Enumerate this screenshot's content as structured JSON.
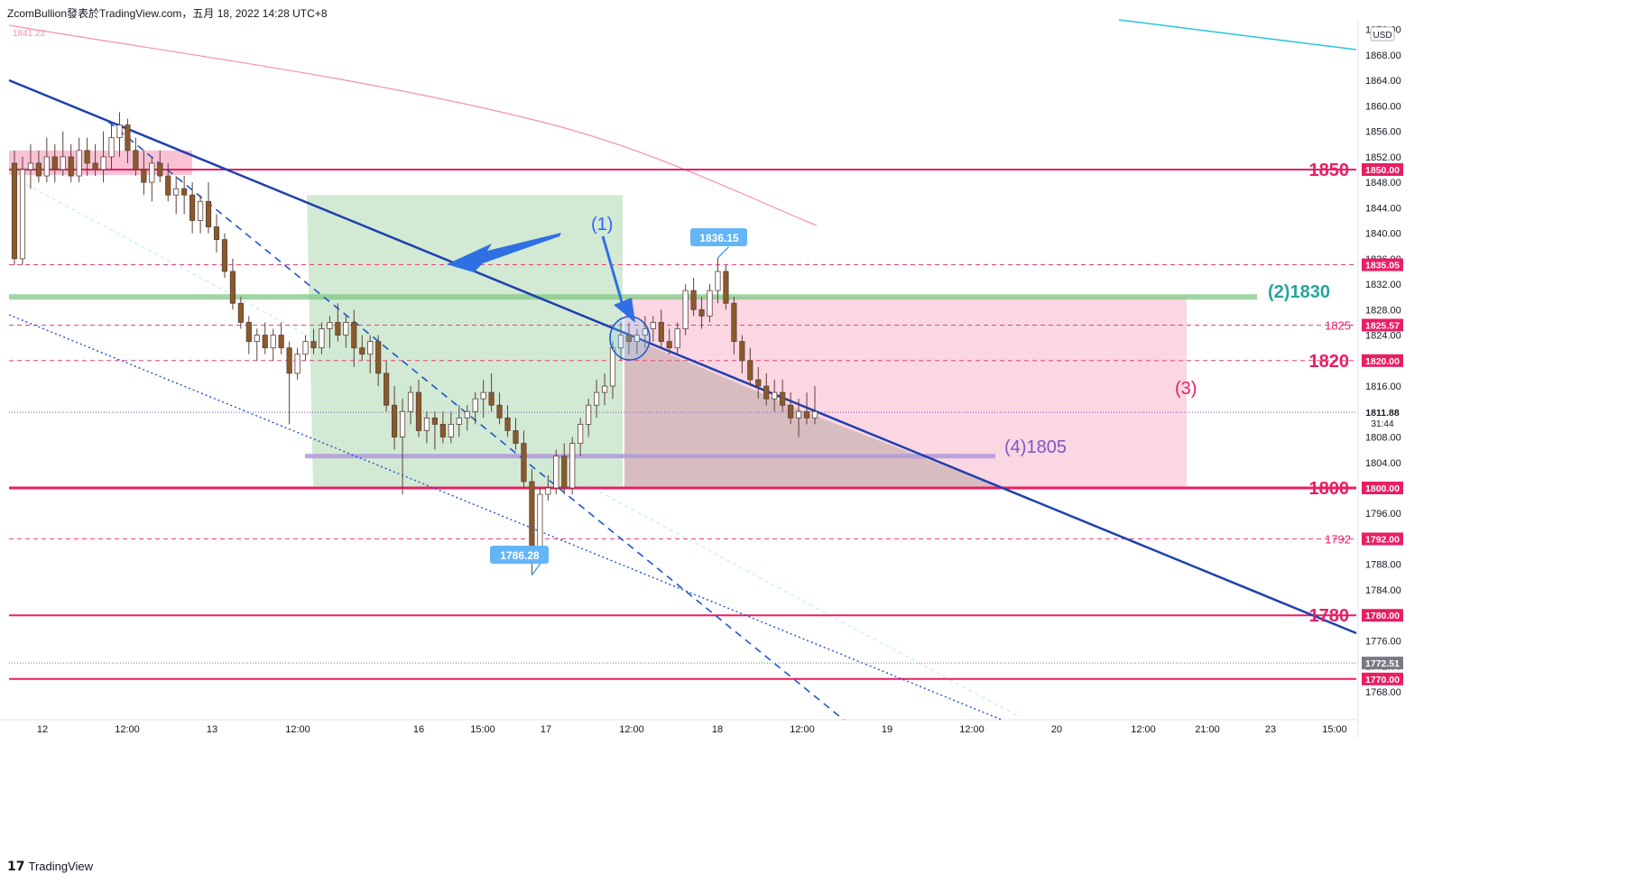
{
  "header": {
    "caption": "ZcomBullion發表於TradingView.com，五月 18, 2022 14:28 UTC+8"
  },
  "footer": {
    "brand": "TradingView"
  },
  "chart_data": {
    "type": "candlestick",
    "currency": "USD",
    "price_axis": {
      "ylim": [
        1765,
        1872
      ],
      "ticks": [
        1768,
        1772,
        1776,
        1780,
        1784,
        1788,
        1792,
        1796,
        1800,
        1804,
        1808,
        1812,
        1816,
        1820,
        1824,
        1828,
        1832,
        1836,
        1840,
        1844,
        1848,
        1852,
        1856,
        1860,
        1864,
        1868
      ],
      "top_partial_label": "1872.00"
    },
    "time_axis": {
      "ticks": [
        "12",
        "12:00",
        "13",
        "12:00",
        "16",
        "15:00",
        "17",
        "12:00",
        "18",
        "12:00",
        "19",
        "12:00",
        "20",
        "12:00",
        "21:00",
        "23",
        "15:00"
      ]
    },
    "price_badges": [
      {
        "value": "1850.00",
        "color": "#e91e63"
      },
      {
        "value": "1835.05",
        "color": "#e91e63"
      },
      {
        "value": "1825.57",
        "color": "#e91e63"
      },
      {
        "value": "1820.00",
        "color": "#e91e63"
      },
      {
        "value": "1811.88",
        "color": "#ffffff",
        "text_color": "#131722",
        "sub": "31:44"
      },
      {
        "value": "1800.00",
        "color": "#e91e63"
      },
      {
        "value": "1792.00",
        "color": "#e91e63"
      },
      {
        "value": "1780.00",
        "color": "#e91e63"
      },
      {
        "value": "1772.51",
        "color": "#787b86"
      },
      {
        "value": "1770.00",
        "color": "#e91e63"
      }
    ],
    "horizontal_levels": [
      {
        "price": 1850,
        "style": "solid",
        "label": "1850"
      },
      {
        "price": 1835.05,
        "style": "dashed"
      },
      {
        "price": 1825.57,
        "style": "dashed",
        "label": "1825"
      },
      {
        "price": 1820,
        "style": "dashed",
        "label": "1820"
      },
      {
        "price": 1800,
        "style": "solid-thick",
        "label": "1800"
      },
      {
        "price": 1792,
        "style": "dashed",
        "label": "1792"
      },
      {
        "price": 1780,
        "style": "solid",
        "label": "1780"
      },
      {
        "price": 1770,
        "style": "solid"
      }
    ],
    "annotations": [
      {
        "text": "(1)",
        "color": "#2962ff"
      },
      {
        "text": "(2)1830",
        "color": "#26a69a"
      },
      {
        "text": "(3)",
        "color": "#e91e63"
      },
      {
        "text": "(4)1805",
        "color": "#7e57c2"
      }
    ],
    "callouts": [
      {
        "text": "1836.15",
        "type": "high"
      },
      {
        "text": "1786.28",
        "type": "low"
      }
    ],
    "moving_average_label": "1841.22",
    "ohlc": [
      [
        1851,
        1853,
        1835,
        1836
      ],
      [
        1836,
        1852,
        1835,
        1850
      ],
      [
        1850,
        1854,
        1847,
        1851
      ],
      [
        1851,
        1853,
        1848,
        1849
      ],
      [
        1849,
        1855,
        1848,
        1852
      ],
      [
        1852,
        1854,
        1848,
        1850
      ],
      [
        1850,
        1856,
        1849,
        1852
      ],
      [
        1852,
        1854,
        1848,
        1849
      ],
      [
        1849,
        1855,
        1848,
        1853
      ],
      [
        1853,
        1855,
        1849,
        1851
      ],
      [
        1851,
        1854,
        1849,
        1850
      ],
      [
        1850,
        1856,
        1848,
        1852
      ],
      [
        1852,
        1857,
        1850,
        1855
      ],
      [
        1855,
        1859,
        1852,
        1857
      ],
      [
        1857,
        1858,
        1851,
        1853
      ],
      [
        1853,
        1855,
        1849,
        1850
      ],
      [
        1850,
        1853,
        1846,
        1848
      ],
      [
        1848,
        1852,
        1845,
        1851
      ],
      [
        1851,
        1853,
        1848,
        1849
      ],
      [
        1849,
        1851,
        1845,
        1846
      ],
      [
        1846,
        1849,
        1843,
        1847
      ],
      [
        1847,
        1849,
        1843,
        1846
      ],
      [
        1846,
        1848,
        1840,
        1842
      ],
      [
        1842,
        1846,
        1840,
        1845
      ],
      [
        1845,
        1848,
        1840,
        1841
      ],
      [
        1841,
        1843,
        1837,
        1839
      ],
      [
        1839,
        1840,
        1833,
        1834
      ],
      [
        1834,
        1836,
        1828,
        1829
      ],
      [
        1829,
        1830,
        1825,
        1826
      ],
      [
        1826,
        1827,
        1821,
        1823
      ],
      [
        1823,
        1825,
        1820,
        1824
      ],
      [
        1824,
        1826,
        1821,
        1822
      ],
      [
        1822,
        1825,
        1820,
        1824
      ],
      [
        1824,
        1826,
        1821,
        1822
      ],
      [
        1822,
        1823,
        1810,
        1818
      ],
      [
        1818,
        1822,
        1817,
        1821
      ],
      [
        1821,
        1824,
        1820,
        1823
      ],
      [
        1823,
        1825,
        1821,
        1822
      ],
      [
        1822,
        1826,
        1821,
        1825
      ],
      [
        1825,
        1827,
        1822,
        1826
      ],
      [
        1826,
        1829,
        1823,
        1824
      ],
      [
        1824,
        1827,
        1822,
        1826
      ],
      [
        1826,
        1828,
        1819,
        1822
      ],
      [
        1822,
        1824,
        1820,
        1821
      ],
      [
        1821,
        1824,
        1818,
        1823
      ],
      [
        1823,
        1824,
        1816,
        1818
      ],
      [
        1818,
        1820,
        1812,
        1813
      ],
      [
        1813,
        1816,
        1806,
        1808
      ],
      [
        1808,
        1814,
        1799,
        1812
      ],
      [
        1812,
        1816,
        1810,
        1815
      ],
      [
        1815,
        1817,
        1808,
        1809
      ],
      [
        1809,
        1812,
        1807,
        1811
      ],
      [
        1811,
        1812,
        1806,
        1810
      ],
      [
        1810,
        1812,
        1807,
        1808
      ],
      [
        1808,
        1812,
        1807,
        1810
      ],
      [
        1810,
        1813,
        1808,
        1811
      ],
      [
        1811,
        1813,
        1809,
        1812
      ],
      [
        1812,
        1815,
        1810,
        1814
      ],
      [
        1814,
        1817,
        1811,
        1815
      ],
      [
        1815,
        1818,
        1812,
        1813
      ],
      [
        1813,
        1815,
        1810,
        1811
      ],
      [
        1811,
        1813,
        1808,
        1809
      ],
      [
        1809,
        1811,
        1806,
        1807
      ],
      [
        1807,
        1809,
        1800,
        1801
      ],
      [
        1801,
        1803,
        1786.28,
        1790
      ],
      [
        1790,
        1800,
        1788,
        1799
      ],
      [
        1799,
        1802,
        1798,
        1800
      ],
      [
        1800,
        1806,
        1799,
        1805
      ],
      [
        1805,
        1807,
        1799,
        1800
      ],
      [
        1800,
        1808,
        1799,
        1807
      ],
      [
        1807,
        1811,
        1805,
        1810
      ],
      [
        1810,
        1814,
        1808,
        1813
      ],
      [
        1813,
        1817,
        1811,
        1815
      ],
      [
        1815,
        1818,
        1813,
        1816
      ],
      [
        1816,
        1823,
        1814,
        1822
      ],
      [
        1822,
        1826,
        1820,
        1824
      ],
      [
        1824,
        1826,
        1821,
        1823
      ],
      [
        1823,
        1825,
        1821,
        1824
      ],
      [
        1824,
        1827,
        1822,
        1825
      ],
      [
        1825,
        1827,
        1823,
        1826
      ],
      [
        1826,
        1828,
        1822,
        1823
      ],
      [
        1823,
        1825,
        1821,
        1822
      ],
      [
        1822,
        1826,
        1821,
        1825
      ],
      [
        1825,
        1832,
        1824,
        1831
      ],
      [
        1831,
        1833,
        1827,
        1828
      ],
      [
        1828,
        1830,
        1825,
        1827
      ],
      [
        1827,
        1832,
        1826,
        1831
      ],
      [
        1831,
        1836.15,
        1829,
        1834
      ],
      [
        1834,
        1835,
        1828,
        1829
      ],
      [
        1829,
        1830,
        1821,
        1823
      ],
      [
        1823,
        1824,
        1818,
        1820
      ],
      [
        1820,
        1822,
        1816,
        1817
      ],
      [
        1817,
        1819,
        1814,
        1816
      ],
      [
        1816,
        1818,
        1813,
        1814
      ],
      [
        1814,
        1817,
        1812,
        1815
      ],
      [
        1815,
        1817,
        1812,
        1813
      ],
      [
        1813,
        1815,
        1810,
        1811
      ],
      [
        1811,
        1814,
        1808,
        1812
      ],
      [
        1812,
        1815,
        1810,
        1811
      ],
      [
        1811,
        1816,
        1810,
        1812
      ]
    ]
  }
}
